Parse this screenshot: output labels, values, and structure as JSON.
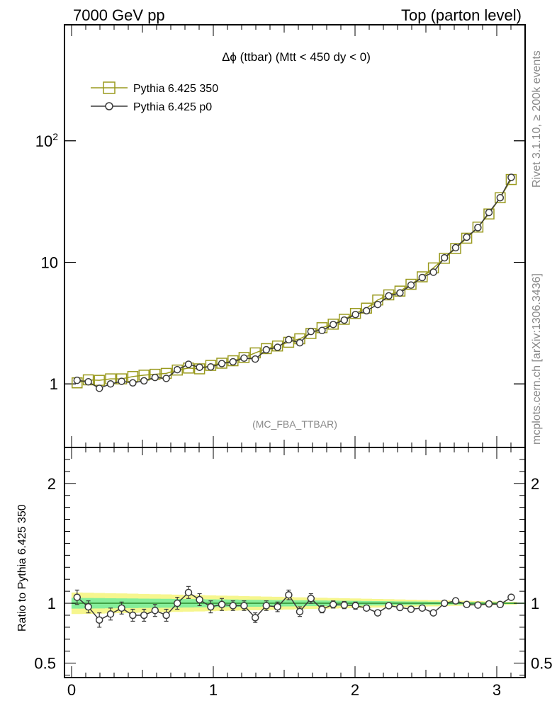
{
  "header": {
    "left": "7000 GeV pp",
    "right": "Top (parton level)"
  },
  "plot_title": "Δϕ (ttbar) (Mtt < 450 dy < 0)",
  "analysis_label": "(MC_FBA_TTBAR)",
  "side_labels": {
    "rivet": "Rivet 3.1.10, ≥ 200k events",
    "mcplots": "mcplots.cern.ch [arXiv:1306.3436]"
  },
  "ratio_ylabel": "Ratio to Pythia 6.425 350",
  "colors": {
    "ref": "#9a9a1e",
    "mc": "#3a3a3a",
    "band_inner": "#86ee9a",
    "band_outer": "#f6f68e",
    "ratio_line": "#2a8a2a"
  },
  "chart_data": [
    {
      "type": "line",
      "yscale": "log",
      "xlim": [
        -0.05,
        3.2
      ],
      "ylim": [
        0.3,
        900
      ],
      "yticks": [
        1,
        10,
        100
      ],
      "ytick_labels": [
        "1",
        "10",
        "10^2"
      ],
      "x": [
        0.039,
        0.118,
        0.196,
        0.275,
        0.353,
        0.432,
        0.511,
        0.589,
        0.668,
        0.746,
        0.825,
        0.903,
        0.982,
        1.06,
        1.139,
        1.217,
        1.296,
        1.374,
        1.453,
        1.532,
        1.61,
        1.689,
        1.767,
        1.846,
        1.924,
        2.003,
        2.081,
        2.16,
        2.238,
        2.317,
        2.395,
        2.474,
        2.553,
        2.631,
        2.71,
        2.788,
        2.867,
        2.945,
        3.024,
        3.102
      ],
      "series": [
        {
          "name": "Pythia 6.425 350",
          "marker": "square",
          "values": [
            1.02,
            1.08,
            1.07,
            1.1,
            1.1,
            1.15,
            1.18,
            1.2,
            1.22,
            1.3,
            1.35,
            1.33,
            1.42,
            1.48,
            1.55,
            1.65,
            1.8,
            1.95,
            2.05,
            2.2,
            2.35,
            2.6,
            2.9,
            3.1,
            3.4,
            3.8,
            4.2,
            4.9,
            5.4,
            5.8,
            6.6,
            7.6,
            9.0,
            10.8,
            13.0,
            15.8,
            19.5,
            25.0,
            34.0,
            48.0
          ]
        },
        {
          "name": "Pythia 6.425 p0",
          "marker": "circle",
          "values": [
            1.07,
            1.04,
            0.92,
            1.0,
            1.05,
            1.02,
            1.06,
            1.13,
            1.11,
            1.31,
            1.45,
            1.37,
            1.38,
            1.47,
            1.52,
            1.63,
            1.6,
            1.91,
            2.0,
            2.31,
            2.18,
            2.7,
            2.75,
            3.08,
            3.35,
            3.72,
            4.0,
            4.5,
            5.3,
            5.6,
            6.5,
            7.5,
            8.3,
            10.9,
            13.2,
            16.1,
            19.3,
            25.7,
            34.0,
            50.0
          ],
          "errors": [
            0.07,
            0.05,
            0.06,
            0.05,
            0.06,
            0.05,
            0.05,
            0.06,
            0.05,
            0.07,
            0.08,
            0.07,
            0.07,
            0.07,
            0.07,
            0.08,
            0.08,
            0.09,
            0.09,
            0.1,
            0.1,
            0.1,
            0.1,
            0.11,
            0.12,
            0.12,
            0.13,
            0.14,
            0.15,
            0.15,
            0.17,
            0.18,
            0.2,
            0.22,
            0.25,
            0.28,
            0.32,
            0.38,
            0.45,
            0.6
          ]
        }
      ]
    },
    {
      "type": "line",
      "xlabel": "",
      "ylabel": "Ratio to Pythia 6.425 350",
      "xlim": [
        -0.05,
        3.2
      ],
      "ylim": [
        0.38,
        2.3
      ],
      "xticks": [
        0,
        1,
        2,
        3
      ],
      "yticks": [
        0.5,
        1,
        2
      ],
      "x": [
        0.039,
        0.118,
        0.196,
        0.275,
        0.353,
        0.432,
        0.511,
        0.589,
        0.668,
        0.746,
        0.825,
        0.903,
        0.982,
        1.06,
        1.139,
        1.217,
        1.296,
        1.374,
        1.453,
        1.532,
        1.61,
        1.689,
        1.767,
        1.846,
        1.924,
        2.003,
        2.081,
        2.16,
        2.238,
        2.317,
        2.395,
        2.474,
        2.553,
        2.631,
        2.71,
        2.788,
        2.867,
        2.945,
        3.024,
        3.102
      ],
      "series": [
        {
          "name": "Pythia 6.425 p0",
          "values": [
            1.05,
            0.97,
            0.86,
            0.91,
            0.96,
            0.9,
            0.9,
            0.94,
            0.9,
            1.0,
            1.09,
            1.03,
            0.97,
            0.99,
            0.98,
            0.98,
            0.88,
            0.98,
            0.97,
            1.07,
            0.93,
            1.04,
            0.95,
            0.99,
            0.985,
            0.98,
            0.96,
            0.92,
            0.98,
            0.965,
            0.95,
            0.96,
            0.92,
            1.0,
            1.02,
            0.99,
            0.985,
            0.995,
            0.99,
            1.05
          ],
          "errors": [
            0.06,
            0.05,
            0.06,
            0.05,
            0.05,
            0.05,
            0.05,
            0.05,
            0.05,
            0.05,
            0.05,
            0.05,
            0.05,
            0.05,
            0.04,
            0.04,
            0.04,
            0.04,
            0.04,
            0.04,
            0.04,
            0.04,
            0.03,
            0.03,
            0.03,
            0.03,
            0.02,
            0.02,
            0.02,
            0.02,
            0.02,
            0.02,
            0.01,
            0.01,
            0.01,
            0.01,
            0.01,
            0.01,
            0.01,
            0.01
          ]
        }
      ],
      "band_inner": [
        0.045,
        0.044,
        0.043,
        0.042,
        0.041,
        0.04,
        0.039,
        0.038,
        0.037,
        0.036,
        0.035,
        0.034,
        0.033,
        0.032,
        0.031,
        0.03,
        0.029,
        0.028,
        0.027,
        0.026,
        0.025,
        0.024,
        0.023,
        0.022,
        0.021,
        0.02,
        0.019,
        0.018,
        0.017,
        0.016,
        0.015,
        0.014,
        0.013,
        0.012,
        0.011,
        0.01,
        0.009,
        0.008,
        0.007,
        0.006
      ],
      "band_outer": [
        0.09,
        0.088,
        0.086,
        0.084,
        0.082,
        0.08,
        0.078,
        0.076,
        0.074,
        0.072,
        0.07,
        0.068,
        0.066,
        0.064,
        0.062,
        0.06,
        0.058,
        0.056,
        0.054,
        0.052,
        0.05,
        0.048,
        0.046,
        0.044,
        0.042,
        0.04,
        0.038,
        0.036,
        0.034,
        0.032,
        0.03,
        0.028,
        0.026,
        0.024,
        0.022,
        0.02,
        0.018,
        0.016,
        0.014,
        0.012
      ]
    }
  ]
}
